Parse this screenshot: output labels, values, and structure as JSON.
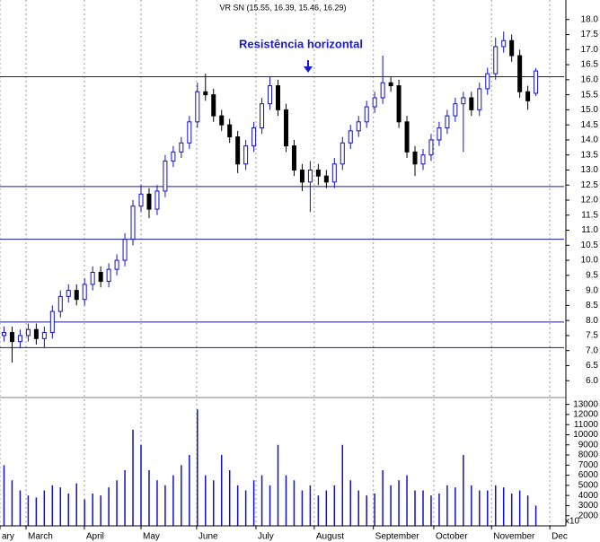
{
  "chart_data": {
    "type": "candlestick",
    "title": "VR SN (15.55, 16.39, 15.46, 16.29)",
    "annotation": "Resistência horizontal",
    "volume_unit_label": "x10",
    "up_color": "#1010c8",
    "down_color": "#000000",
    "volume_color": "#1010c8",
    "hline_color": "#1a1a9a",
    "grid": true,
    "xlim": [
      0,
      210
    ],
    "xticks": [
      {
        "value": 0,
        "label": "ary"
      },
      {
        "value": 9.7,
        "label": "March"
      },
      {
        "value": 31.4,
        "label": "April"
      },
      {
        "value": 52.5,
        "label": "May"
      },
      {
        "value": 73.2,
        "label": "June"
      },
      {
        "value": 95.3,
        "label": "July"
      },
      {
        "value": 117,
        "label": "August"
      },
      {
        "value": 139,
        "label": "September"
      },
      {
        "value": 161.5,
        "label": "October"
      },
      {
        "value": 183,
        "label": "November"
      },
      {
        "value": 204.7,
        "label": "Dec"
      }
    ],
    "ylim": [
      5.5,
      18.5
    ],
    "yticks": [
      {
        "value": 6,
        "label": "6.0"
      },
      {
        "value": 6.5,
        "label": "6.5"
      },
      {
        "value": 7,
        "label": "7.0"
      },
      {
        "value": 7.5,
        "label": "7.5"
      },
      {
        "value": 8,
        "label": "8.0"
      },
      {
        "value": 8.5,
        "label": "8.5"
      },
      {
        "value": 9,
        "label": "9.0"
      },
      {
        "value": 9.5,
        "label": "9.5"
      },
      {
        "value": 10,
        "label": "10.0"
      },
      {
        "value": 10.5,
        "label": "10.5"
      },
      {
        "value": 11,
        "label": "11.0"
      },
      {
        "value": 11.5,
        "label": "11.5"
      },
      {
        "value": 12,
        "label": "12.0"
      },
      {
        "value": 12.5,
        "label": "12.5"
      },
      {
        "value": 13,
        "label": "13.0"
      },
      {
        "value": 13.5,
        "label": "13.5"
      },
      {
        "value": 14,
        "label": "14.0"
      },
      {
        "value": 14.5,
        "label": "14.5"
      },
      {
        "value": 15,
        "label": "15.0"
      },
      {
        "value": 15.5,
        "label": "15.5"
      },
      {
        "value": 16,
        "label": "16.0"
      },
      {
        "value": 16.5,
        "label": "16.5"
      },
      {
        "value": 17,
        "label": "17.0"
      },
      {
        "value": 17.5,
        "label": "17.5"
      },
      {
        "value": 18,
        "label": "18.0"
      }
    ],
    "volume_ylim": [
      1000,
      13500
    ],
    "volume_yticks": [
      2000,
      3000,
      4000,
      5000,
      6000,
      7000,
      8000,
      9000,
      10000,
      11000,
      12000,
      13000
    ],
    "hlines": [
      16.1,
      12.45,
      10.7,
      7.95,
      7.1
    ],
    "x": [
      1.5,
      4.5,
      7.5,
      10.5,
      13.5,
      16.5,
      19.5,
      22.5,
      25.5,
      28.5,
      31.5,
      34.5,
      37.5,
      40.5,
      43.5,
      46.5,
      49.5,
      52.5,
      55.5,
      58.5,
      61.5,
      64.5,
      67.5,
      70.5,
      73.5,
      76.5,
      79.5,
      82.5,
      85.5,
      88.5,
      91.5,
      94.5,
      97.5,
      100.5,
      103.5,
      106.5,
      109.5,
      112.5,
      115.5,
      118.5,
      121.5,
      124.5,
      127.5,
      130.5,
      133.5,
      136.5,
      139.5,
      142.5,
      145.5,
      148.5,
      151.5,
      154.5,
      157.5,
      160.5,
      163.5,
      166.5,
      169.5,
      172.5,
      175.5,
      178.5,
      181.5,
      184.5,
      187.5,
      190.5,
      193.5,
      196.5,
      199.5
    ],
    "open": [
      7.5,
      7.6,
      7.3,
      7.5,
      7.7,
      7.4,
      7.6,
      8.3,
      8.8,
      9.0,
      8.7,
      9.2,
      9.6,
      9.3,
      9.7,
      10.0,
      10.7,
      11.8,
      12.2,
      11.7,
      12.3,
      13.3,
      13.6,
      13.9,
      14.6,
      15.6,
      15.5,
      14.8,
      14.5,
      14.1,
      13.2,
      13.8,
      14.4,
      15.2,
      15.8,
      15.0,
      13.8,
      13.0,
      12.6,
      13.0,
      12.8,
      12.6,
      13.2,
      13.9,
      14.3,
      14.6,
      15.1,
      15.4,
      15.9,
      15.8,
      14.6,
      13.6,
      13.2,
      13.5,
      14.0,
      14.4,
      14.8,
      15.2,
      15.4,
      15.0,
      15.7,
      16.2,
      17.1,
      17.3,
      16.8,
      15.6,
      15.55
    ],
    "high": [
      7.8,
      7.8,
      7.7,
      7.9,
      7.9,
      7.8,
      8.5,
      9.0,
      9.2,
      9.2,
      9.4,
      9.8,
      9.8,
      9.9,
      10.2,
      10.9,
      12.0,
      12.5,
      12.4,
      12.5,
      13.5,
      13.8,
      14.1,
      14.8,
      15.9,
      16.2,
      15.7,
      15.0,
      14.7,
      14.3,
      14.0,
      14.6,
      15.4,
      16.1,
      16.0,
      15.2,
      14.0,
      13.2,
      13.3,
      13.2,
      13.0,
      13.4,
      14.1,
      14.5,
      14.8,
      15.3,
      15.6,
      16.8,
      16.1,
      16.0,
      14.8,
      13.8,
      13.7,
      14.2,
      14.6,
      15.0,
      15.4,
      15.6,
      15.6,
      15.9,
      16.4,
      17.4,
      17.6,
      17.5,
      17.0,
      15.8,
      16.39
    ],
    "low": [
      7.3,
      6.6,
      7.1,
      7.3,
      7.2,
      7.1,
      7.4,
      8.1,
      8.6,
      8.5,
      8.5,
      9.0,
      9.1,
      9.1,
      9.5,
      9.8,
      10.5,
      11.6,
      11.4,
      11.5,
      12.1,
      13.1,
      13.4,
      13.7,
      14.4,
      15.3,
      14.6,
      14.3,
      13.9,
      12.9,
      13.0,
      13.6,
      14.2,
      15.0,
      14.8,
      13.6,
      12.8,
      12.3,
      11.6,
      12.5,
      12.4,
      12.4,
      13.0,
      13.7,
      14.1,
      14.4,
      14.9,
      15.2,
      15.6,
      14.4,
      13.4,
      12.8,
      13.0,
      13.3,
      13.8,
      14.2,
      14.6,
      13.6,
      14.8,
      14.8,
      15.5,
      16.0,
      16.9,
      16.6,
      15.4,
      15.0,
      15.46
    ],
    "close": [
      7.6,
      7.3,
      7.5,
      7.7,
      7.4,
      7.6,
      8.3,
      8.8,
      9.0,
      8.7,
      9.2,
      9.6,
      9.3,
      9.7,
      10.0,
      10.7,
      11.8,
      12.2,
      11.7,
      12.3,
      13.3,
      13.6,
      13.9,
      14.6,
      15.6,
      15.5,
      14.8,
      14.5,
      14.1,
      13.2,
      13.8,
      14.4,
      15.2,
      15.8,
      15.0,
      13.8,
      13.0,
      12.6,
      13.0,
      12.8,
      12.6,
      13.2,
      13.9,
      14.3,
      14.6,
      15.1,
      15.4,
      15.9,
      15.8,
      14.6,
      13.6,
      13.2,
      13.5,
      14.0,
      14.4,
      14.8,
      15.2,
      15.4,
      15.0,
      15.7,
      16.2,
      17.1,
      17.3,
      16.8,
      15.6,
      15.3,
      16.29
    ],
    "volume": [
      7000,
      5500,
      4500,
      4000,
      3800,
      4500,
      5000,
      4800,
      4200,
      5200,
      3600,
      4200,
      4000,
      4800,
      5500,
      6500,
      10500,
      9000,
      6500,
      5500,
      5000,
      6000,
      7000,
      8000,
      12500,
      6000,
      5500,
      8000,
      6500,
      5000,
      4500,
      5500,
      6000,
      5000,
      9000,
      6000,
      5500,
      4500,
      5000,
      4000,
      4500,
      5000,
      9000,
      5500,
      4500,
      4000,
      4200,
      6500,
      5000,
      5500,
      6000,
      4500,
      4500,
      4000,
      4200,
      5000,
      4800,
      8000,
      5000,
      4500,
      4500,
      5000,
      4800,
      4200,
      4500,
      4000,
      3000
    ]
  }
}
